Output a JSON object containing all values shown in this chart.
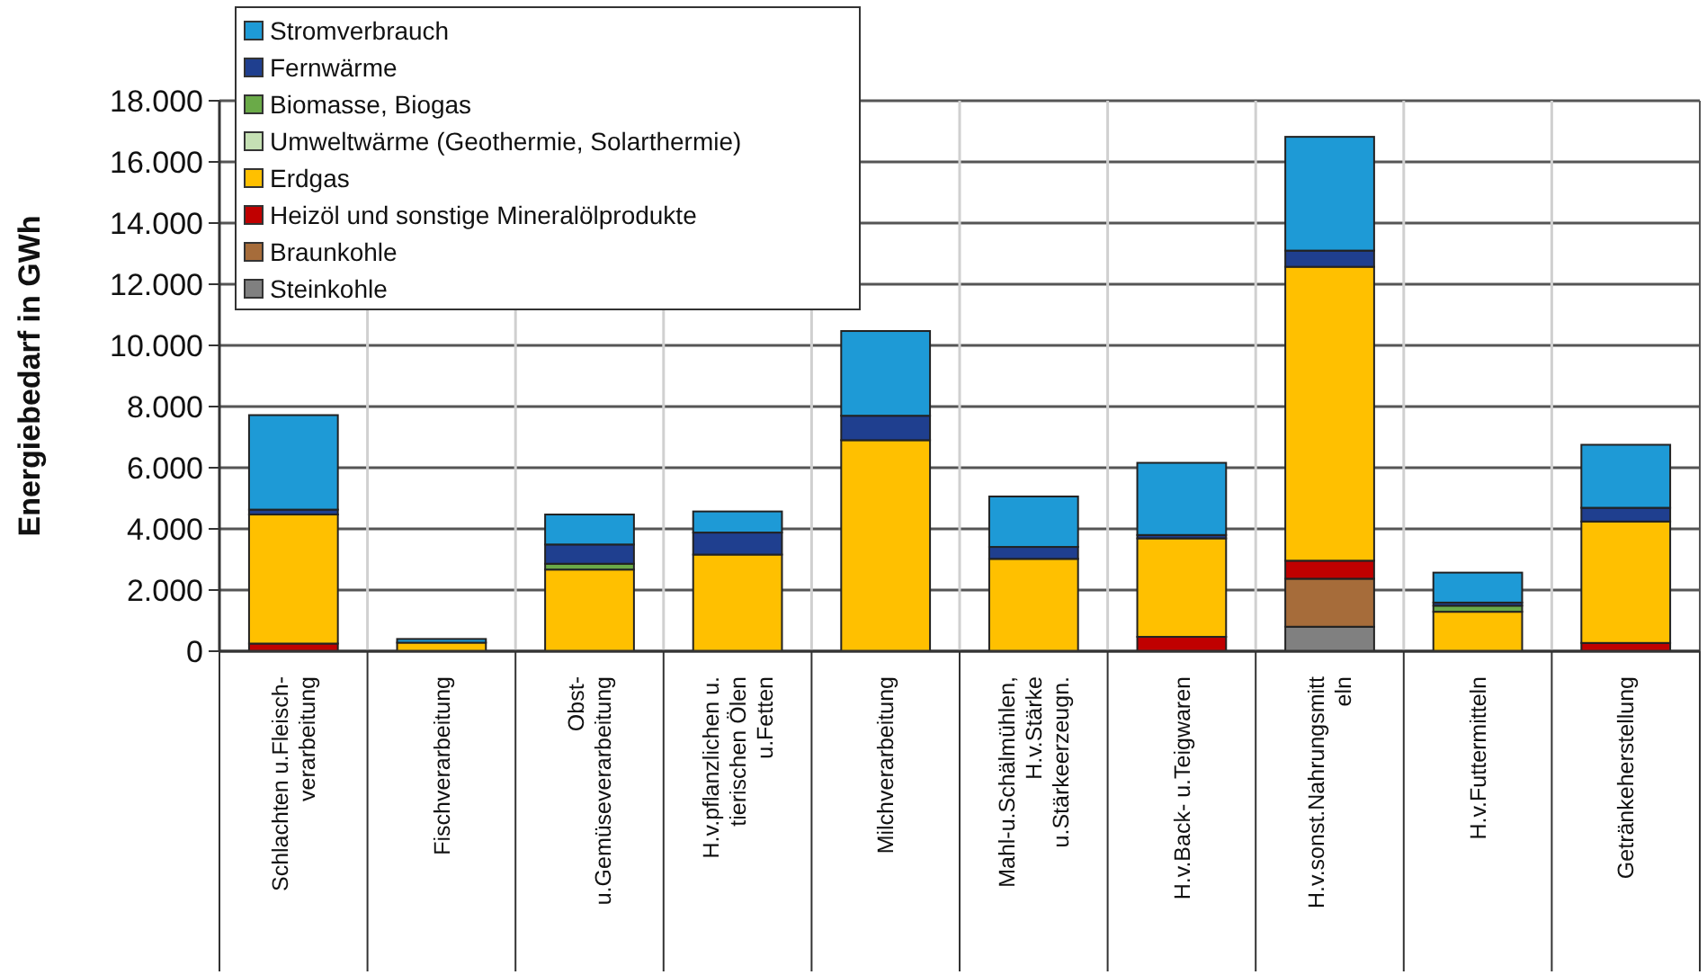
{
  "chart_data": {
    "type": "bar",
    "stacked": true,
    "ylabel": "Energiebedarf in GWh",
    "categories": [
      "Schlachten u.Fleisch-\nverarbeitung",
      "Fischverarbeitung",
      "Obst-\nu.Gemüseverarbeitung",
      "H.v.pflanzlichen u.\ntierischen Ölen\nu.Fetten",
      "Milchverarbeitung",
      "Mahl-u.Schälmühlen,\nH.v.Stärke\nu.Stärkeerzeugn.",
      "H.v.Back- u.Teigwaren",
      "H.v.sonst.Nahrungsmitt\neln",
      "H.v.Futtermitteln",
      "Getränkeherstellung"
    ],
    "series": [
      {
        "name": "Steinkohle",
        "color": "#808080",
        "values": [
          0,
          0,
          0,
          0,
          0,
          0,
          0,
          800,
          0,
          0
        ]
      },
      {
        "name": "Braunkohle",
        "color": "#a66c3a",
        "values": [
          0,
          0,
          0,
          0,
          0,
          0,
          0,
          1570,
          0,
          0
        ]
      },
      {
        "name": "Heizöl und sonstige Mineralölprodukte",
        "color": "#c00000",
        "values": [
          250,
          0,
          0,
          0,
          null,
          0,
          470,
          590,
          0,
          270
        ]
      },
      {
        "name": "Erdgas",
        "color": "#ffc000",
        "values": [
          4220,
          280,
          2670,
          3160,
          6900,
          3020,
          3220,
          9610,
          1290,
          3970
        ]
      },
      {
        "name": "Umweltwärme (Geothermie, Solarthermie)",
        "color": "#c5e0b4",
        "values": [
          0,
          0,
          0,
          0,
          0,
          0,
          0,
          0,
          0,
          0
        ]
      },
      {
        "name": "Biomasse, Biogas",
        "color": "#6aaa48",
        "values": [
          0,
          0,
          190,
          0,
          0,
          0,
          0,
          0,
          200,
          0
        ]
      },
      {
        "name": "Fernwärme",
        "color": "#1f3f8f",
        "values": [
          160,
          0,
          630,
          720,
          800,
          390,
          110,
          530,
          100,
          450
        ]
      },
      {
        "name": "Stromverbrauch",
        "color": "#1e9ad6",
        "values": [
          3090,
          120,
          980,
          690,
          2770,
          1650,
          2360,
          3720,
          980,
          2060
        ]
      }
    ],
    "ylim": [
      0,
      18000
    ],
    "yticks": [
      0,
      {
        "value": 2000,
        "label": "2.000"
      },
      {
        "value": 4000,
        "label": "4.000"
      },
      {
        "value": 6000,
        "label": "6.000"
      },
      {
        "value": 8000,
        "label": "8.000"
      },
      {
        "value": 10000,
        "label": "10.000"
      },
      {
        "value": 12000,
        "label": "12.000"
      },
      {
        "value": 14000,
        "label": "14.000"
      },
      {
        "value": 16000,
        "label": "16.000"
      },
      {
        "value": 18000,
        "label": "18.000"
      }
    ],
    "grid": "y",
    "legend": "top left"
  }
}
